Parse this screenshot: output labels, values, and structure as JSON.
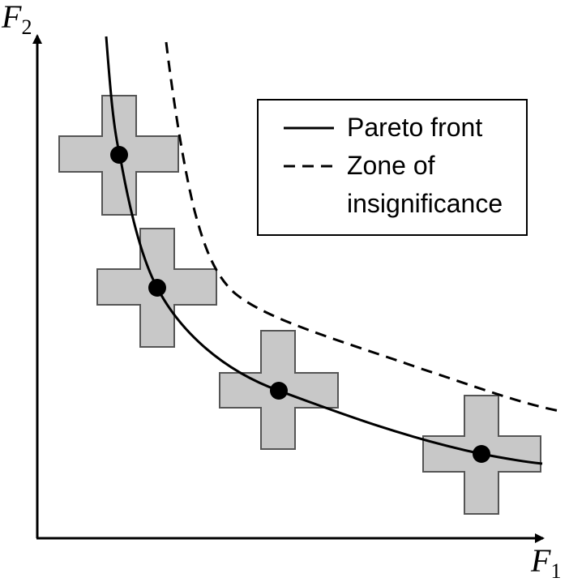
{
  "axes": {
    "x_label": "F",
    "x_subscript": "1",
    "y_label": "F",
    "y_subscript": "2"
  },
  "legend": {
    "items": [
      {
        "label": "Pareto front",
        "line_style": "solid"
      },
      {
        "label_line1": "Zone of",
        "label_line2": "insignificance",
        "line_style": "dashed"
      }
    ]
  },
  "markers": {
    "point_count": 4,
    "cross_fill": "#c8c8c8",
    "point_fill": "#000000"
  },
  "colors": {
    "axis": "#000000",
    "curve": "#000000",
    "background": "#ffffff"
  }
}
